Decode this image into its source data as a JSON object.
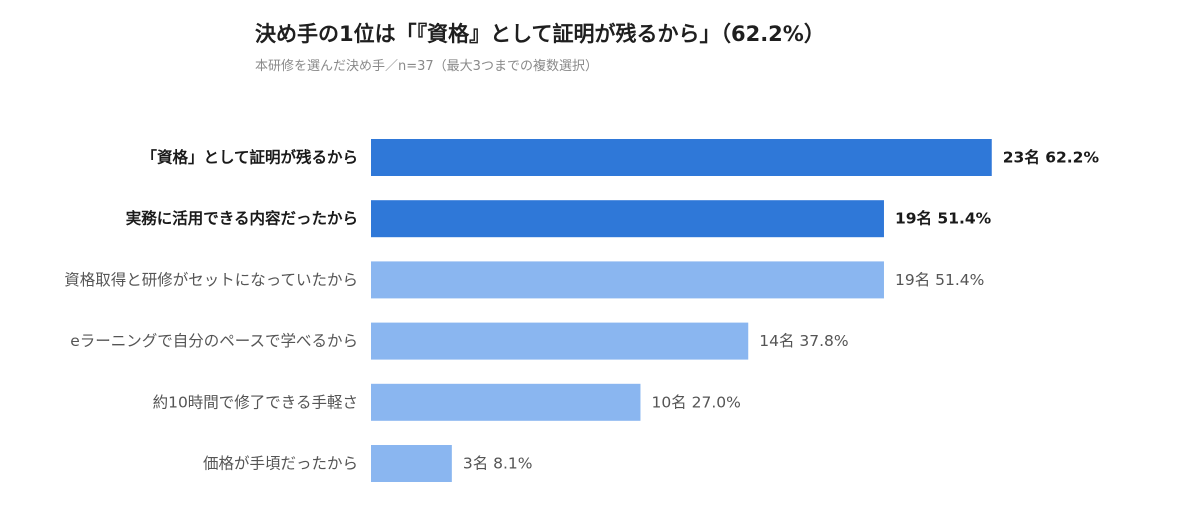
{
  "title": "決め手の1位は「『資格』として証明が残るから」（62.2%）",
  "subtitle": "本研修を選んだ決め手／n=37（最大3つまでの複数選択）",
  "colors": {
    "highlight": "#2f78d8",
    "normal": "#8ab6f0",
    "label_dark": "#1a1a1a",
    "label_light": "#555555"
  },
  "chart_data": {
    "type": "bar",
    "orientation": "horizontal",
    "categories": [
      "「資格」として証明が残るから",
      "実務に活用できる内容だったから",
      "資格取得と研修がセットになっていたから",
      "eラーニングで自分のペースで学べるから",
      "約10時間で修了できる手軽さ",
      "価格が手頃だったから"
    ],
    "counts": [
      23,
      19,
      19,
      14,
      10,
      3
    ],
    "values": [
      62.2,
      51.4,
      51.4,
      37.8,
      27.0,
      8.1
    ],
    "value_labels": [
      "23名  62.2%",
      "19名  51.4%",
      "19名  51.4%",
      "14名  37.8%",
      "10名  27.0%",
      "3名  8.1%"
    ],
    "highlighted": [
      true,
      true,
      false,
      false,
      false,
      false
    ],
    "xlim": [
      0,
      100
    ],
    "grid": false,
    "legend": "none"
  }
}
